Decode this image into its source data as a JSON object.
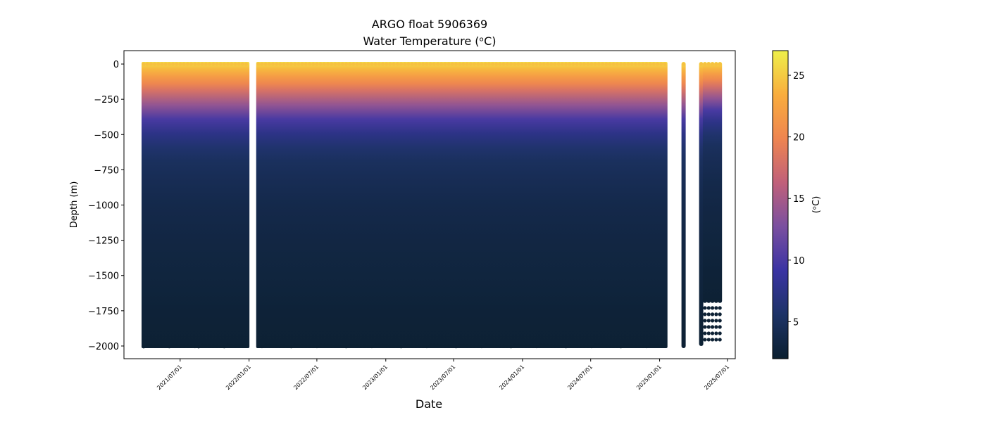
{
  "chart_data": {
    "type": "heatmap",
    "title": "ARGO float 5906369",
    "subtitle": "Water Temperature (ᵒC)",
    "xlabel": "Date",
    "ylabel": "Depth (m)",
    "colorbar_label": "(ᵒC)",
    "x_range": [
      "2021-02-01",
      "2025-07-22"
    ],
    "ylim": [
      -2090,
      95
    ],
    "y_ticks": [
      0,
      -250,
      -500,
      -750,
      -1000,
      -1250,
      -1500,
      -1750,
      -2000
    ],
    "y_tick_labels": [
      "0",
      "−250",
      "−500",
      "−750",
      "−1000",
      "−1250",
      "−1500",
      "−1750",
      "−2000"
    ],
    "x_ticks": [
      "2021-07-01",
      "2022-01-01",
      "2022-07-01",
      "2023-01-01",
      "2023-07-01",
      "2024-01-01",
      "2024-07-01",
      "2025-01-01",
      "2025-07-01"
    ],
    "x_tick_labels": [
      "2021/07/01",
      "2022/01/01",
      "2022/07/01",
      "2023/01/01",
      "2023/07/01",
      "2024/01/01",
      "2024/07/01",
      "2025/01/01",
      "2025/07/01"
    ],
    "colorbar_range": [
      2,
      27
    ],
    "colorbar_ticks": [
      5,
      10,
      15,
      20,
      25
    ],
    "colormap": [
      "#0b1f2f",
      "#1d3366",
      "#3a33a3",
      "#7a4fa0",
      "#c0607a",
      "#ee8550",
      "#f9ad3d",
      "#eef04a"
    ],
    "profiles_dense_range": [
      {
        "start": "2021-03-20",
        "end": "2022-01-02"
      },
      {
        "start": "2022-01-20",
        "end": "2025-01-22"
      }
    ],
    "profiles_sparse": [
      "2025-03-06",
      "2025-04-22",
      "2025-05-02",
      "2025-05-12",
      "2025-05-22",
      "2025-06-01",
      "2025-06-11"
    ],
    "temperature_profile": {
      "depth": [
        0,
        -50,
        -100,
        -150,
        -200,
        -300,
        -400,
        -500,
        -600,
        -700,
        -800,
        -1000,
        -1250,
        -1500,
        -1750,
        -2000
      ],
      "temp": [
        26,
        24,
        22,
        20,
        18,
        14,
        10,
        7.5,
        6,
        5,
        4.5,
        3.8,
        3.3,
        3.0,
        2.6,
        2.3
      ]
    }
  }
}
